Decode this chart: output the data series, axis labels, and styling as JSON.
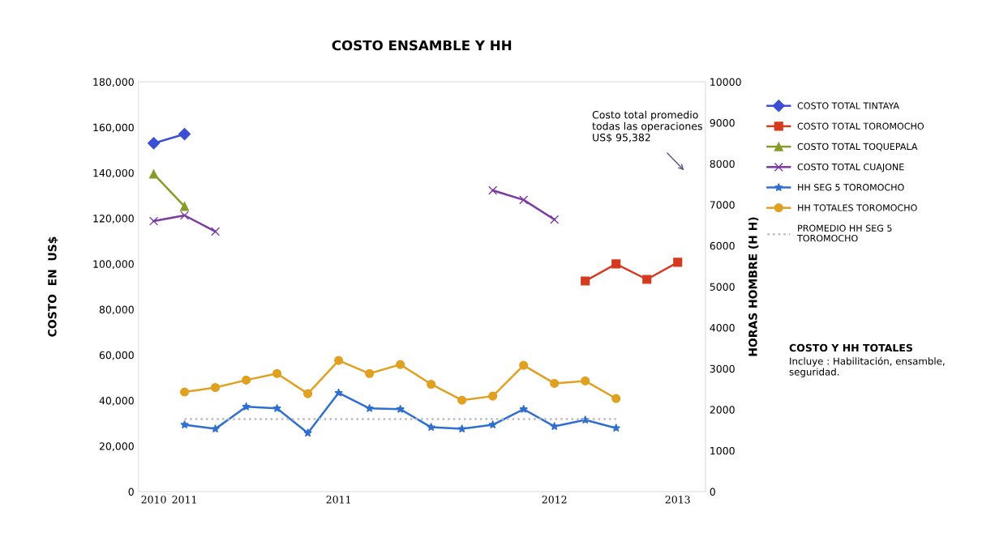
{
  "chart_data": {
    "type": "line",
    "title": "COSTO ENSAMBLE Y HH",
    "ylabel": "COSTO  EN  US$",
    "y2label": "HORAS HOMBRE (H H)",
    "categories": [
      "2010",
      "2011",
      null,
      null,
      null,
      null,
      "2011",
      null,
      null,
      null,
      null,
      null,
      null,
      "2012",
      null,
      null,
      null,
      "2013"
    ],
    "ylim": [
      0,
      180000
    ],
    "yticks": [
      {
        "value": 0,
        "label": "0"
      },
      {
        "value": 20000,
        "label": "20,000"
      },
      {
        "value": 40000,
        "label": "40,000"
      },
      {
        "value": 60000,
        "label": "60,000"
      },
      {
        "value": 80000,
        "label": "80,000"
      },
      {
        "value": 100000,
        "label": "100,000"
      },
      {
        "value": 120000,
        "label": "120,000"
      },
      {
        "value": 140000,
        "label": "140,000"
      },
      {
        "value": 160000,
        "label": "160,000"
      },
      {
        "value": 180000,
        "label": "180,000"
      }
    ],
    "y2lim": [
      0,
      10000
    ],
    "y2ticks": [
      0,
      1000,
      2000,
      3000,
      4000,
      5000,
      6000,
      7000,
      8000,
      9000,
      10000
    ],
    "legend": "right",
    "grid": false,
    "series": [
      {
        "name": "COSTO TOTAL TINTAYA",
        "color": "#3a4fd6",
        "marker": "diamond",
        "values": [
          153000,
          157000,
          null,
          null,
          null,
          null,
          null,
          null,
          null,
          null,
          null,
          null,
          null,
          null,
          null,
          null,
          null,
          null
        ]
      },
      {
        "name": "COSTO TOTAL TOROMOCHO",
        "color": "#d63a1e",
        "marker": "square",
        "values": [
          null,
          null,
          null,
          null,
          null,
          null,
          null,
          null,
          null,
          null,
          null,
          null,
          null,
          null,
          92500,
          100000,
          93200,
          100700
        ]
      },
      {
        "name": "COSTO TOTAL TOQUEPALA",
        "color": "#8a9a2a",
        "marker": "triangle",
        "values": [
          139500,
          125200,
          null,
          null,
          null,
          null,
          null,
          null,
          null,
          null,
          null,
          null,
          null,
          null,
          null,
          null,
          null,
          null
        ]
      },
      {
        "name": "COSTO TOTAL CUAJONE",
        "color": "#7a3aa0",
        "marker": "cross",
        "values": [
          118800,
          121300,
          114200,
          null,
          null,
          null,
          null,
          null,
          null,
          null,
          null,
          132300,
          128100,
          119500,
          null,
          null,
          null,
          null
        ]
      },
      {
        "name": "HH SEG 5 TOROMOCHO",
        "color": "#2f6fd0",
        "marker": "star",
        "axis": "y2",
        "values": [
          null,
          1630,
          1530,
          2070,
          2030,
          1430,
          2410,
          2030,
          2010,
          1570,
          1530,
          1630,
          2010,
          1590,
          1750,
          1550,
          null,
          null
        ]
      },
      {
        "name": "HH TOTALES TOROMOCHO",
        "color": "#e0a020",
        "marker": "circle",
        "axis": "y2",
        "values": [
          null,
          2430,
          2540,
          2720,
          2880,
          2390,
          3200,
          2880,
          3100,
          2620,
          2230,
          2330,
          3080,
          2640,
          2700,
          2270,
          null,
          null
        ]
      },
      {
        "name": "PROMEDIO HH SEG 5\nTOROMOCHO",
        "color": "#bbbbbb",
        "marker": "none",
        "line_style": "dotted",
        "axis": "y2",
        "values": [
          null,
          1770,
          1770,
          1770,
          1770,
          1770,
          1770,
          1770,
          1770,
          1770,
          1770,
          1770,
          1770,
          1770,
          1770,
          1770,
          null,
          null
        ]
      }
    ],
    "annotations": [
      "Costo total promedio\ntodas las operaciones\nUS$ 95,382",
      "COSTO Y HH TOTALES",
      "Incluye : Habilitación, ensamble,\nseguridad."
    ]
  }
}
